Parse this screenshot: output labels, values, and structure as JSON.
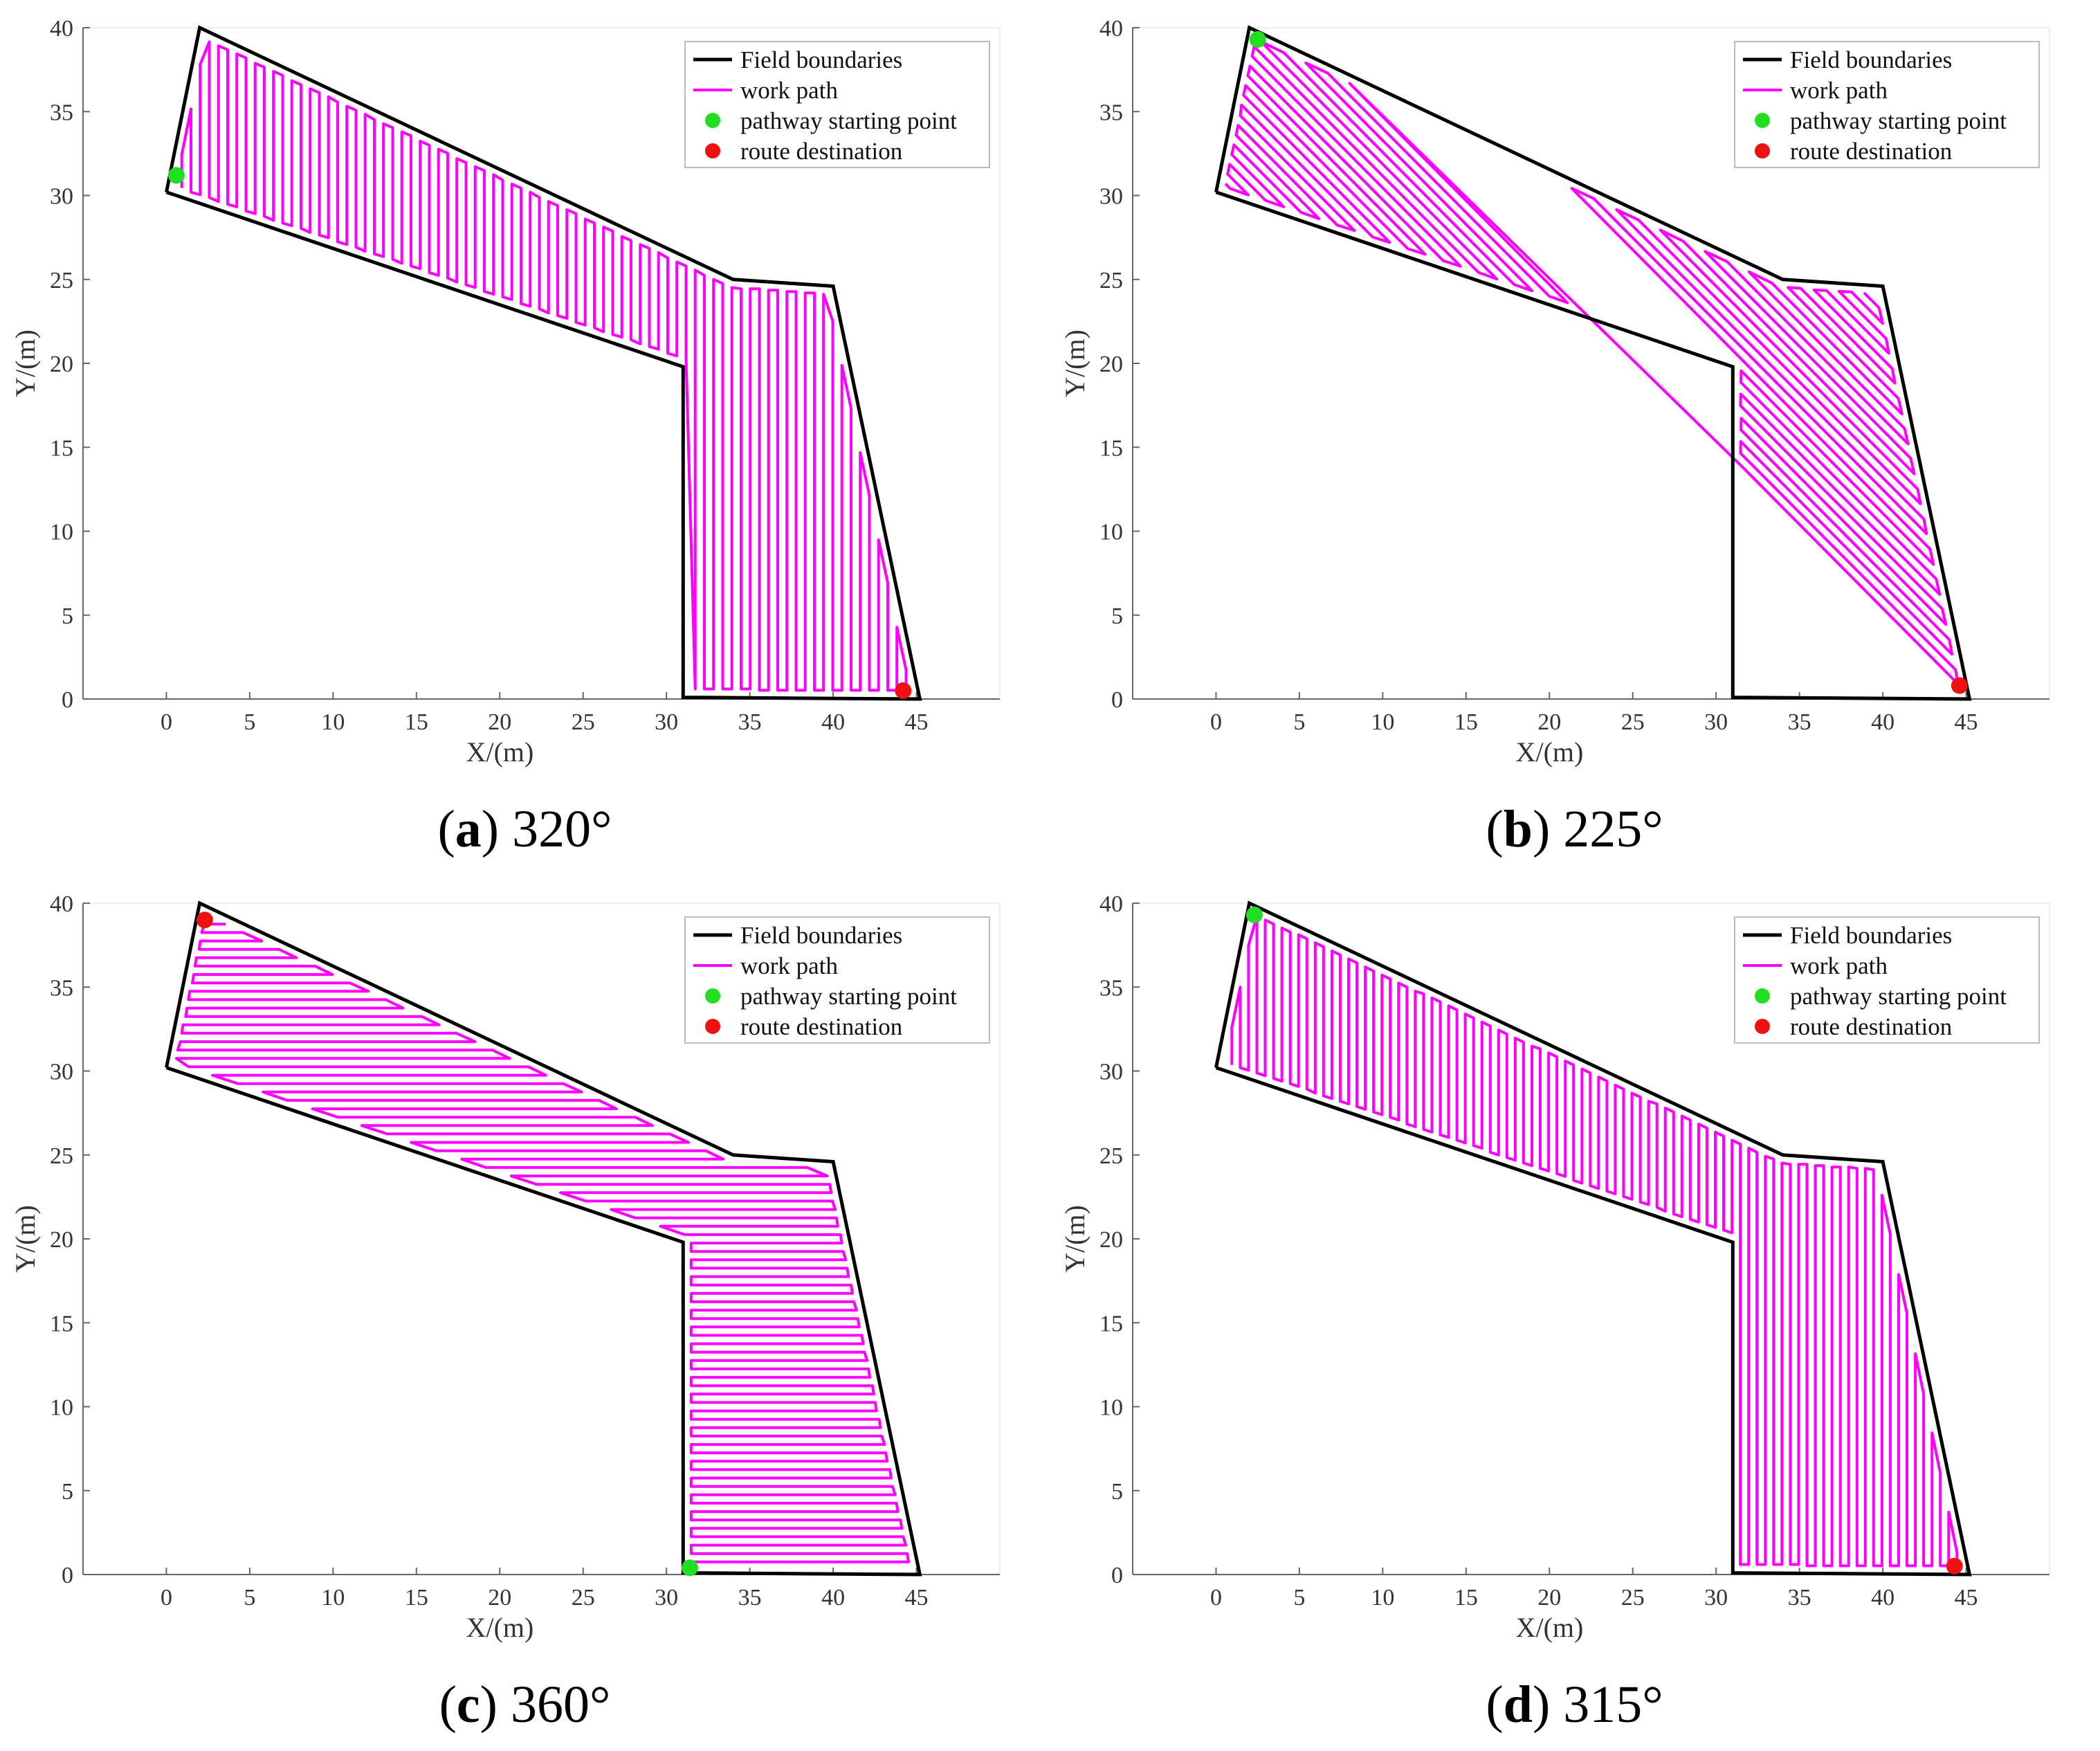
{
  "chart_data": [
    {
      "panel": "a",
      "type": "line",
      "caption_letter": "a",
      "caption_text": "320°",
      "xlabel": "X/(m)",
      "ylabel": "Y/(m)",
      "xlim": [
        -5,
        50
      ],
      "ylim": [
        0,
        40
      ],
      "xticks": [
        0,
        5,
        10,
        15,
        20,
        25,
        30,
        35,
        40,
        45
      ],
      "yticks": [
        0,
        5,
        10,
        15,
        20,
        25,
        30,
        35,
        40
      ],
      "path_angle_deg": 320,
      "start_point": [
        0.6,
        31.2
      ],
      "end_point": [
        44.2,
        0.5
      ],
      "legend": [
        "Field boundaries",
        "work path",
        "pathway starting point",
        "route destination"
      ]
    },
    {
      "panel": "b",
      "type": "line",
      "caption_letter": "b",
      "caption_text": "225°",
      "xlabel": "X/(m)",
      "ylabel": "Y/(m)",
      "xlim": [
        -5,
        50
      ],
      "ylim": [
        0,
        40
      ],
      "xticks": [
        0,
        5,
        10,
        15,
        20,
        25,
        30,
        35,
        40,
        45
      ],
      "yticks": [
        0,
        5,
        10,
        15,
        20,
        25,
        30,
        35,
        40
      ],
      "path_angle_deg": 225,
      "start_point": [
        2.5,
        39.3
      ],
      "end_point": [
        44.6,
        0.8
      ],
      "legend": [
        "Field boundaries",
        "work path",
        "pathway starting point",
        "route destination"
      ]
    },
    {
      "panel": "c",
      "type": "line",
      "caption_letter": "c",
      "caption_text": "360°",
      "xlabel": "X/(m)",
      "ylabel": "Y/(m)",
      "xlim": [
        -5,
        50
      ],
      "ylim": [
        0,
        40
      ],
      "xticks": [
        0,
        5,
        10,
        15,
        20,
        25,
        30,
        35,
        40,
        45
      ],
      "yticks": [
        0,
        5,
        10,
        15,
        20,
        25,
        30,
        35,
        40
      ],
      "path_angle_deg": 360,
      "start_point": [
        31.4,
        0.4
      ],
      "end_point": [
        2.3,
        39.0
      ],
      "legend": [
        "Field boundaries",
        "work path",
        "pathway starting point",
        "route destination"
      ]
    },
    {
      "panel": "d",
      "type": "line",
      "caption_letter": "d",
      "caption_text": "315°",
      "xlabel": "X/(m)",
      "ylabel": "Y/(m)",
      "xlim": [
        -5,
        50
      ],
      "ylim": [
        0,
        40
      ],
      "xticks": [
        0,
        5,
        10,
        15,
        20,
        25,
        30,
        35,
        40,
        45
      ],
      "yticks": [
        0,
        5,
        10,
        15,
        20,
        25,
        30,
        35,
        40
      ],
      "path_angle_deg": 315,
      "start_point": [
        2.3,
        39.3
      ],
      "end_point": [
        44.3,
        0.5
      ],
      "legend": [
        "Field boundaries",
        "work path",
        "pathway starting point",
        "route destination"
      ]
    }
  ],
  "field_boundary": [
    [
      0,
      30.2
    ],
    [
      2,
      40
    ],
    [
      34,
      25
    ],
    [
      40,
      24.6
    ],
    [
      45.2,
      0
    ],
    [
      31,
      0.1
    ],
    [
      31,
      19.8
    ],
    [
      0,
      30.2
    ]
  ],
  "colors": {
    "boundary": "#000000",
    "work_path": "#ff00ff",
    "start": "#22dd22",
    "destination": "#ee1111"
  }
}
